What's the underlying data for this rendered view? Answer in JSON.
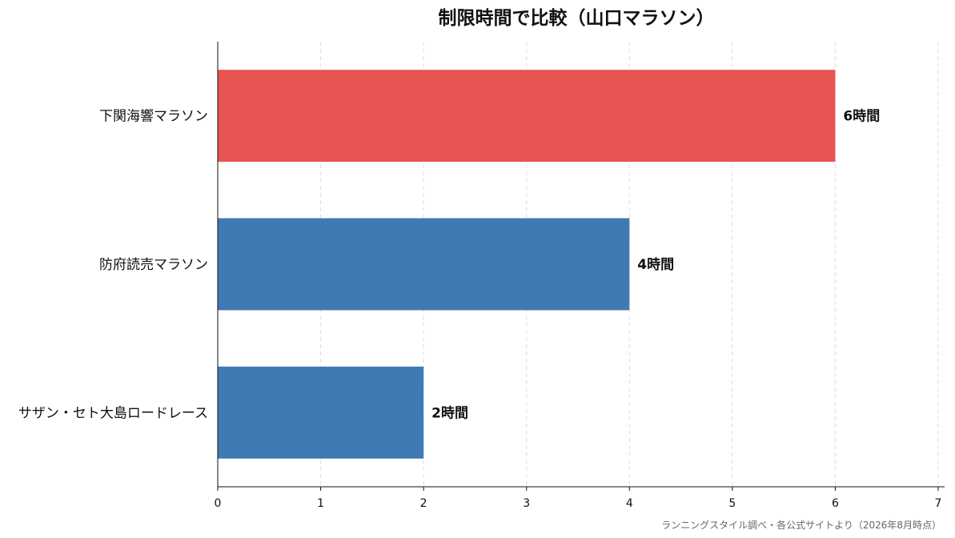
{
  "chart_data": {
    "type": "bar",
    "orientation": "horizontal",
    "title": "制限時間で比較（山口マラソン）",
    "categories": [
      "下関海響マラソン",
      "防府読売マラソン",
      "サザン・セト大島ロードレース"
    ],
    "values": [
      6,
      4,
      2
    ],
    "data_labels": [
      "6時間",
      "4時間",
      "2時間"
    ],
    "bar_colors": [
      "#e85353",
      "#3f7ab5",
      "#3f7ab5"
    ],
    "xlim": [
      0,
      7
    ],
    "xticks": [
      0,
      1,
      2,
      3,
      4,
      5,
      6,
      7
    ],
    "xlabel": "",
    "ylabel": "",
    "grid": "vertical-dashed",
    "source": "ランニングスタイル調べ・各公式サイトより（2026年8月時点）"
  }
}
